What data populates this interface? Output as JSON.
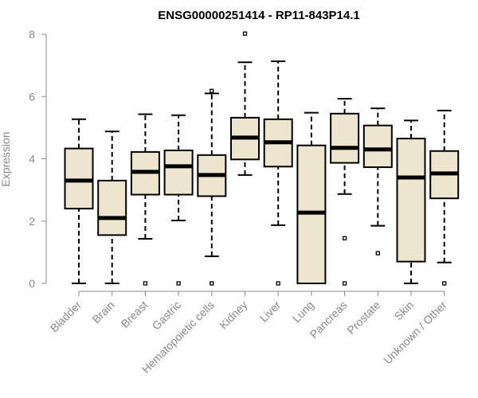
{
  "chart_data": {
    "type": "boxplot",
    "title": "ENSG00000251414 - RP11-843P14.1",
    "xlabel": "",
    "ylabel": "Expression",
    "ylim": [
      0,
      8
    ],
    "yticks": [
      0,
      2,
      4,
      6,
      8
    ],
    "box_color": "#ede5cd",
    "categories": [
      "Bladder",
      "Brain",
      "Breast",
      "Gastric",
      "Hematopoietic cells",
      "Kidney",
      "Liver",
      "Lung",
      "Pancreas",
      "Prostate",
      "Skin",
      "Unknown / Other"
    ],
    "boxes": [
      {
        "category": "Bladder",
        "whisker_low": 0,
        "q1": 2.4,
        "median": 3.3,
        "q3": 4.33,
        "whisker_high": 5.27,
        "outliers": []
      },
      {
        "category": "Brain",
        "whisker_low": 0,
        "q1": 1.55,
        "median": 2.1,
        "q3": 3.3,
        "whisker_high": 4.88,
        "outliers": []
      },
      {
        "category": "Breast",
        "whisker_low": 1.43,
        "q1": 2.85,
        "median": 3.58,
        "q3": 4.22,
        "whisker_high": 5.43,
        "outliers": [
          0
        ]
      },
      {
        "category": "Gastric",
        "whisker_low": 2.02,
        "q1": 2.85,
        "median": 3.76,
        "q3": 4.27,
        "whisker_high": 5.4,
        "outliers": [
          0
        ]
      },
      {
        "category": "Hematopoietic cells",
        "whisker_low": 0.87,
        "q1": 2.8,
        "median": 3.48,
        "q3": 4.12,
        "whisker_high": 6.1,
        "outliers": [
          0,
          6.18
        ]
      },
      {
        "category": "Kidney",
        "whisker_low": 3.48,
        "q1": 3.98,
        "median": 4.68,
        "q3": 5.32,
        "whisker_high": 7.1,
        "outliers": [
          8.02
        ]
      },
      {
        "category": "Liver",
        "whisker_low": 1.87,
        "q1": 3.75,
        "median": 4.53,
        "q3": 5.27,
        "whisker_high": 7.13,
        "outliers": [
          0
        ]
      },
      {
        "category": "Lung",
        "whisker_low": 0,
        "q1": 0,
        "median": 2.27,
        "q3": 4.43,
        "whisker_high": 5.48,
        "outliers": []
      },
      {
        "category": "Pancreas",
        "whisker_low": 2.87,
        "q1": 3.87,
        "median": 4.35,
        "q3": 5.45,
        "whisker_high": 5.93,
        "outliers": [
          1.45,
          0
        ]
      },
      {
        "category": "Prostate",
        "whisker_low": 1.85,
        "q1": 3.73,
        "median": 4.3,
        "q3": 5.07,
        "whisker_high": 5.62,
        "outliers": [
          0.97
        ]
      },
      {
        "category": "Skin",
        "whisker_low": 0,
        "q1": 0.7,
        "median": 3.4,
        "q3": 4.65,
        "whisker_high": 5.23,
        "outliers": []
      },
      {
        "category": "Unknown / Other",
        "whisker_low": 0.67,
        "q1": 2.73,
        "median": 3.53,
        "q3": 4.25,
        "whisker_high": 5.55,
        "outliers": [
          0
        ]
      }
    ]
  }
}
